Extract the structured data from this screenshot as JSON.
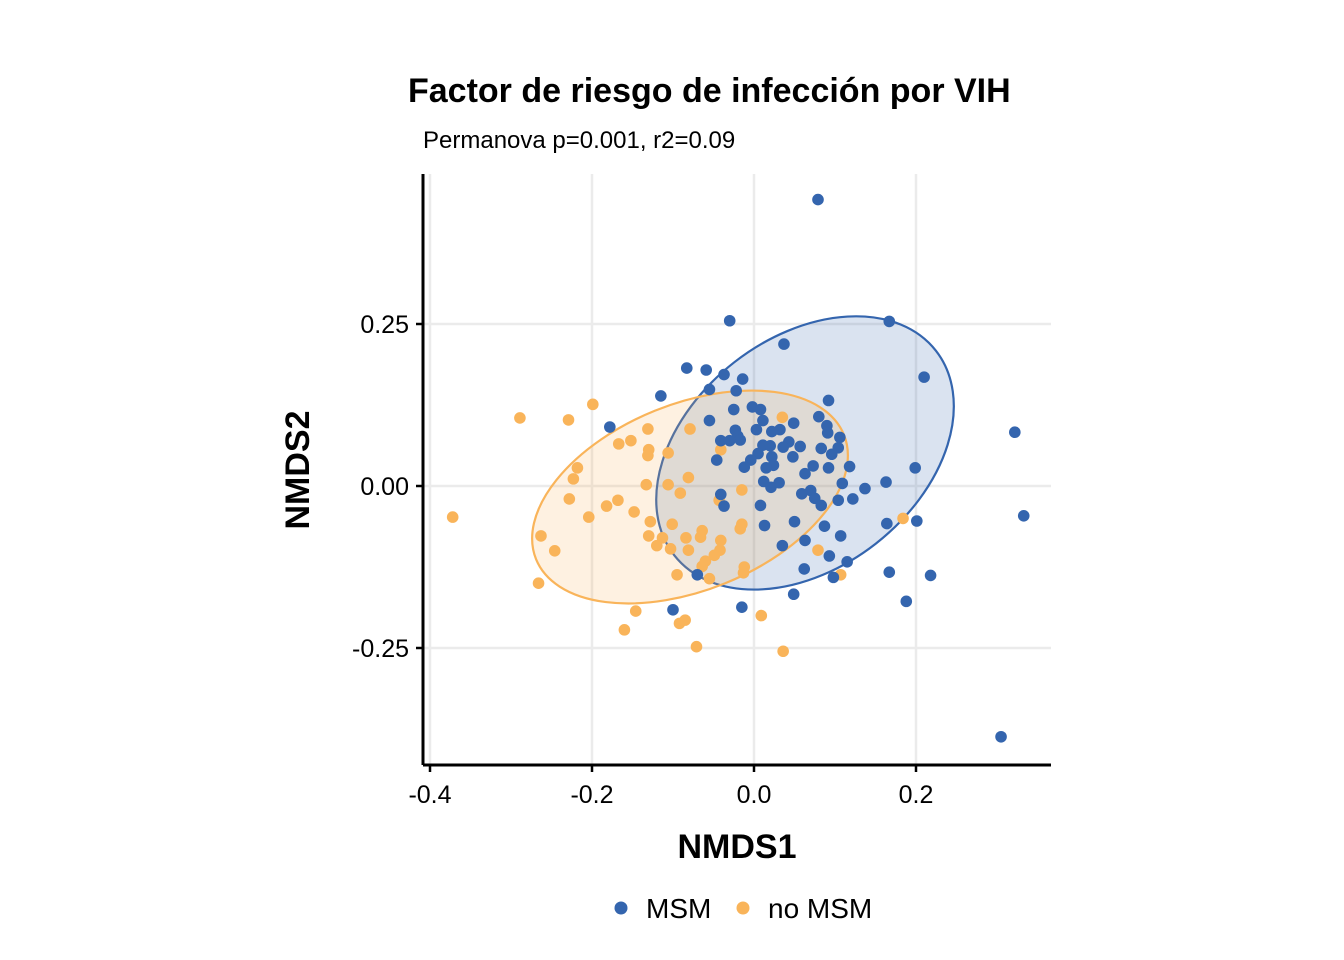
{
  "chart_data": {
    "type": "scatter",
    "title": "Factor de riesgo de infección por VIH",
    "subtitle": "Permanova p=0.001, r2=0.09",
    "xlabel": "NMDS1",
    "ylabel": "NMDS2",
    "xlim": [
      -0.41,
      0.37
    ],
    "ylim": [
      -0.43,
      0.48
    ],
    "x_ticks": [
      -0.4,
      -0.2,
      0.0,
      0.2
    ],
    "x_tick_labels": [
      "-0.4",
      "-0.2",
      "0.0",
      "0.2"
    ],
    "y_ticks": [
      -0.25,
      0.0,
      0.25
    ],
    "y_tick_labels": [
      "-0.25",
      "0.00",
      "0.25"
    ],
    "grid": true,
    "legend_position": "bottom",
    "series": [
      {
        "name": "MSM",
        "color": "#3465ae",
        "ellipse": {
          "center": [
            0.063,
            0.051
          ],
          "semi_major": 0.205,
          "semi_minor": 0.142,
          "angle_deg": -38
        },
        "points": [
          [
            0.079,
            0.442
          ],
          [
            -0.03,
            0.255
          ],
          [
            0.167,
            0.254
          ],
          [
            0.037,
            0.219
          ],
          [
            -0.083,
            0.182
          ],
          [
            -0.059,
            0.179
          ],
          [
            -0.037,
            0.172
          ],
          [
            -0.014,
            0.165
          ],
          [
            -0.055,
            0.149
          ],
          [
            -0.022,
            0.147
          ],
          [
            0.21,
            0.168
          ],
          [
            -0.115,
            0.139
          ],
          [
            0.092,
            0.132
          ],
          [
            -0.002,
            0.122
          ],
          [
            -0.025,
            0.118
          ],
          [
            0.008,
            0.118
          ],
          [
            0.08,
            0.107
          ],
          [
            -0.055,
            0.101
          ],
          [
            0.011,
            0.101
          ],
          [
            0.049,
            0.097
          ],
          [
            0.032,
            0.087
          ],
          [
            -0.023,
            0.086
          ],
          [
            0.003,
            0.087
          ],
          [
            0.09,
            0.093
          ],
          [
            0.022,
            0.084
          ],
          [
            -0.02,
            0.077
          ],
          [
            -0.178,
            0.091
          ],
          [
            0.091,
            0.082
          ],
          [
            0.106,
            0.075
          ],
          [
            -0.017,
            0.071
          ],
          [
            -0.041,
            0.07
          ],
          [
            -0.03,
            0.07
          ],
          [
            0.043,
            0.068
          ],
          [
            0.011,
            0.063
          ],
          [
            0.02,
            0.062
          ],
          [
            0.104,
            0.059
          ],
          [
            0.057,
            0.061
          ],
          [
            0.036,
            0.06
          ],
          [
            0.083,
            0.058
          ],
          [
            0.096,
            0.049
          ],
          [
            0.005,
            0.05
          ],
          [
            0.048,
            0.045
          ],
          [
            0.022,
            0.045
          ],
          [
            -0.004,
            0.04
          ],
          [
            0.118,
            0.03
          ],
          [
            -0.046,
            0.04
          ],
          [
            0.024,
            0.032
          ],
          [
            0.073,
            0.031
          ],
          [
            0.092,
            0.028
          ],
          [
            0.015,
            0.028
          ],
          [
            -0.012,
            0.029
          ],
          [
            0.199,
            0.028
          ],
          [
            0.063,
            0.019
          ],
          [
            0.012,
            0.007
          ],
          [
            0.031,
            0.005
          ],
          [
            0.109,
            0.004
          ],
          [
            0.163,
            0.006
          ],
          [
            0.021,
            -0.002
          ],
          [
            0.137,
            -0.004
          ],
          [
            0.07,
            -0.007
          ],
          [
            0.059,
            -0.012
          ],
          [
            -0.041,
            -0.013
          ],
          [
            0.122,
            -0.02
          ],
          [
            0.104,
            -0.022
          ],
          [
            0.075,
            -0.019
          ],
          [
            0.008,
            -0.03
          ],
          [
            0.083,
            -0.03
          ],
          [
            -0.037,
            -0.031
          ],
          [
            0.201,
            -0.054
          ],
          [
            0.164,
            -0.058
          ],
          [
            0.05,
            -0.055
          ],
          [
            0.322,
            0.083
          ],
          [
            0.087,
            -0.062
          ],
          [
            0.107,
            -0.077
          ],
          [
            0.333,
            -0.046
          ],
          [
            0.013,
            -0.061
          ],
          [
            0.063,
            -0.084
          ],
          [
            0.035,
            -0.092
          ],
          [
            0.093,
            -0.108
          ],
          [
            0.115,
            -0.117
          ],
          [
            0.062,
            -0.128
          ],
          [
            0.167,
            -0.133
          ],
          [
            0.218,
            -0.138
          ],
          [
            -0.07,
            -0.137
          ],
          [
            0.098,
            -0.141
          ],
          [
            0.049,
            -0.167
          ],
          [
            -0.1,
            -0.191
          ],
          [
            -0.015,
            -0.187
          ],
          [
            0.188,
            -0.178
          ],
          [
            0.305,
            -0.387
          ]
        ]
      },
      {
        "name": "no MSM",
        "color": "#f9b45a",
        "ellipse": {
          "center": [
            -0.079,
            -0.017
          ],
          "semi_major": 0.205,
          "semi_minor": 0.115,
          "angle_deg": -22
        },
        "points": [
          [
            -0.199,
            0.126
          ],
          [
            -0.289,
            0.105
          ],
          [
            -0.229,
            0.102
          ],
          [
            0.035,
            0.106
          ],
          [
            -0.131,
            0.088
          ],
          [
            -0.079,
            0.088
          ],
          [
            -0.152,
            0.07
          ],
          [
            -0.167,
            0.065
          ],
          [
            -0.13,
            0.056
          ],
          [
            -0.041,
            0.056
          ],
          [
            -0.131,
            0.047
          ],
          [
            -0.106,
            0.051
          ],
          [
            -0.218,
            0.028
          ],
          [
            -0.223,
            0.011
          ],
          [
            -0.106,
            0.002
          ],
          [
            -0.133,
            0.002
          ],
          [
            -0.081,
            0.013
          ],
          [
            -0.091,
            -0.011
          ],
          [
            -0.015,
            -0.006
          ],
          [
            -0.043,
            -0.022
          ],
          [
            -0.228,
            -0.02
          ],
          [
            -0.168,
            -0.022
          ],
          [
            -0.204,
            -0.048
          ],
          [
            -0.372,
            -0.048
          ],
          [
            -0.148,
            -0.04
          ],
          [
            -0.182,
            -0.031
          ],
          [
            -0.128,
            -0.055
          ],
          [
            -0.101,
            -0.059
          ],
          [
            0.184,
            -0.05
          ],
          [
            -0.015,
            -0.059
          ],
          [
            -0.263,
            -0.077
          ],
          [
            -0.017,
            -0.066
          ],
          [
            -0.064,
            -0.069
          ],
          [
            -0.066,
            -0.079
          ],
          [
            -0.13,
            -0.077
          ],
          [
            -0.113,
            -0.08
          ],
          [
            -0.084,
            -0.08
          ],
          [
            -0.12,
            -0.092
          ],
          [
            -0.041,
            -0.084
          ],
          [
            -0.103,
            -0.097
          ],
          [
            -0.042,
            -0.099
          ],
          [
            -0.246,
            -0.1
          ],
          [
            -0.081,
            -0.099
          ],
          [
            0.079,
            -0.099
          ],
          [
            -0.049,
            -0.107
          ],
          [
            -0.06,
            -0.116
          ],
          [
            -0.064,
            -0.124
          ],
          [
            -0.012,
            -0.125
          ],
          [
            -0.013,
            -0.134
          ],
          [
            -0.095,
            -0.137
          ],
          [
            0.107,
            -0.137
          ],
          [
            -0.055,
            -0.143
          ],
          [
            -0.266,
            -0.15
          ],
          [
            -0.146,
            -0.193
          ],
          [
            -0.092,
            -0.212
          ],
          [
            0.009,
            -0.2
          ],
          [
            -0.16,
            -0.222
          ],
          [
            -0.071,
            -0.248
          ],
          [
            0.036,
            -0.255
          ],
          [
            -0.085,
            -0.207
          ]
        ]
      }
    ]
  },
  "legend": {
    "items": [
      {
        "label": "MSM",
        "color": "#3465ae"
      },
      {
        "label": "no MSM",
        "color": "#f9b45a"
      }
    ]
  }
}
